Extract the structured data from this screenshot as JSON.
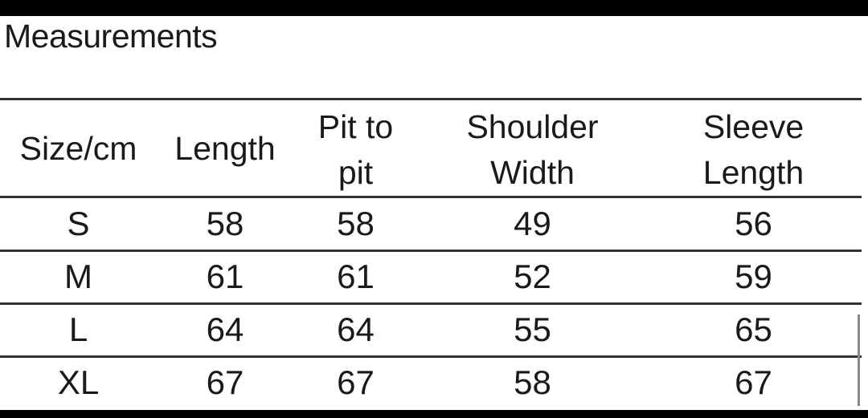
{
  "title": "Measurements",
  "table": {
    "headers": [
      "Size/cm",
      "Length",
      "Pit to pit",
      "Shoulder Width",
      "Sleeve Length"
    ],
    "header_lines": [
      [
        "Size/cm"
      ],
      [
        "Length"
      ],
      [
        "Pit to",
        "pit"
      ],
      [
        "Shoulder",
        "Width"
      ],
      [
        "Sleeve",
        "Length"
      ]
    ],
    "rows": [
      [
        "S",
        "58",
        "58",
        "49",
        "56"
      ],
      [
        "M",
        "61",
        "61",
        "52",
        "59"
      ],
      [
        "L",
        "64",
        "64",
        "55",
        "65"
      ],
      [
        "XL",
        "67",
        "67",
        "58",
        "67"
      ]
    ]
  }
}
